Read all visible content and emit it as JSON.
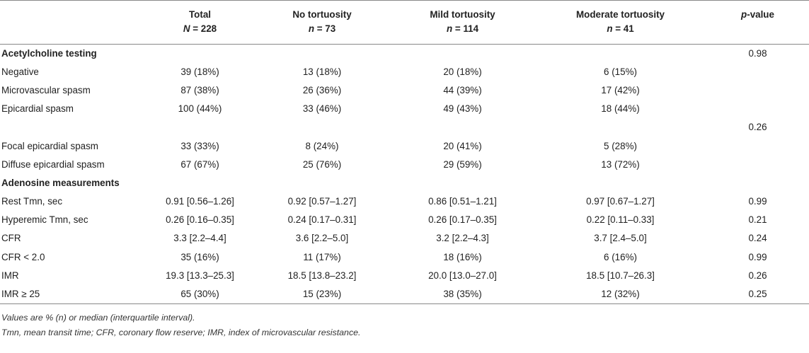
{
  "table": {
    "headers": [
      {
        "line1": "",
        "var": "",
        "val": ""
      },
      {
        "line1": "Total",
        "var": "N",
        "val": " = 228"
      },
      {
        "line1": "No tortuosity",
        "var": "n",
        "val": " = 73"
      },
      {
        "line1": "Mild tortuosity",
        "var": "n",
        "val": " = 114"
      },
      {
        "line1": "Moderate tortuosity",
        "var": "n",
        "val": " = 41"
      },
      {
        "line1_italic": "p",
        "line1_rest": "-value"
      }
    ],
    "rows": [
      {
        "label": "Acetylcholine testing",
        "section": true,
        "total": "",
        "none": "",
        "mild": "",
        "moderate": "",
        "p": "0.98"
      },
      {
        "label": "Negative",
        "total": "39 (18%)",
        "none": "13 (18%)",
        "mild": "20 (18%)",
        "moderate": "6 (15%)",
        "p": ""
      },
      {
        "label": "Microvascular spasm",
        "total": "87 (38%)",
        "none": "26 (36%)",
        "mild": "44 (39%)",
        "moderate": "17 (42%)",
        "p": ""
      },
      {
        "label": "Epicardial spasm",
        "total": "100 (44%)",
        "none": "33 (46%)",
        "mild": "49 (43%)",
        "moderate": "18 (44%)",
        "p": ""
      },
      {
        "label": "",
        "total": "",
        "none": "",
        "mild": "",
        "moderate": "",
        "p": "0.26"
      },
      {
        "label": "Focal epicardial spasm",
        "total": "33 (33%)",
        "none": "8 (24%)",
        "mild": "20 (41%)",
        "moderate": "5 (28%)",
        "p": ""
      },
      {
        "label": "Diffuse epicardial spasm",
        "total": "67 (67%)",
        "none": "25 (76%)",
        "mild": "29 (59%)",
        "moderate": "13 (72%)",
        "p": ""
      },
      {
        "label": "Adenosine measurements",
        "section": true,
        "total": "",
        "none": "",
        "mild": "",
        "moderate": "",
        "p": ""
      },
      {
        "label": "Rest Tmn, sec",
        "total": "0.91 [0.56–1.26]",
        "none": "0.92 [0.57–1.27]",
        "mild": "0.86 [0.51–1.21]",
        "moderate": "0.97 [0.67–1.27]",
        "p": "0.99"
      },
      {
        "label": "Hyperemic Tmn, sec",
        "total": "0.26 [0.16–0.35]",
        "none": "0.24 [0.17–0.31]",
        "mild": "0.26 [0.17–0.35]",
        "moderate": "0.22 [0.11–0.33]",
        "p": "0.21"
      },
      {
        "label": "CFR",
        "total": "3.3 [2.2–4.4]",
        "none": "3.6 [2.2–5.0]",
        "mild": "3.2 [2.2–4.3]",
        "moderate": "3.7 [2.4–5.0]",
        "p": "0.24"
      },
      {
        "label": "CFR < 2.0",
        "total": "35 (16%)",
        "none": "11 (17%)",
        "mild": "18 (16%)",
        "moderate": "6 (16%)",
        "p": "0.99"
      },
      {
        "label": "IMR",
        "total": "19.3 [13.3–25.3]",
        "none": "18.5 [13.8–23.2]",
        "mild": "20.0 [13.0–27.0]",
        "moderate": "18.5 [10.7–26.3]",
        "p": "0.26"
      },
      {
        "label": "IMR ≥ 25",
        "total": "65 (30%)",
        "none": "15 (23%)",
        "mild": "38 (35%)",
        "moderate": "12 (32%)",
        "p": "0.25"
      }
    ]
  },
  "notes": {
    "line1": "Values are % (n) or median (interquartile interval).",
    "line2": "Tmn, mean transit time; CFR, coronary flow reserve; IMR, index of microvascular resistance."
  }
}
